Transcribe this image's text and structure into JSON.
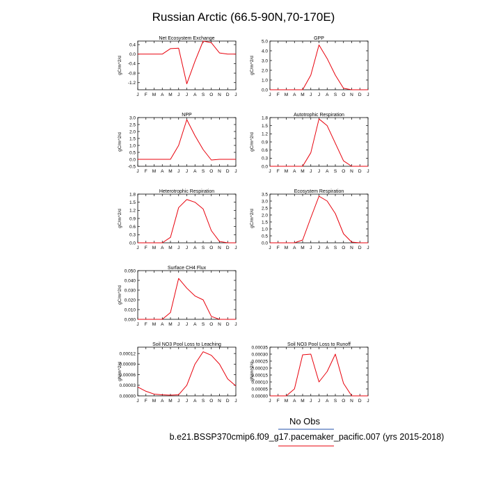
{
  "figure": {
    "title": "Russian Arctic (66.5-90N,70-170E)",
    "legend_text": "No Obs",
    "caption": "b.e21.BSSP370cmip6.f09_g17.pacemaker_pacific.007 (yrs 2015-2018)",
    "line_color": "#e8000b",
    "legend_line_color": "#1f4fa8",
    "caption_line_color": "#e8000b"
  },
  "chart_data": [
    {
      "type": "line",
      "title": "Net Ecosystem Exchange",
      "ylabel": "gC/m^2/d",
      "categories": [
        "J",
        "F",
        "M",
        "A",
        "M",
        "J",
        "J",
        "A",
        "S",
        "O",
        "N",
        "D",
        "J"
      ],
      "values": [
        0.0,
        0.0,
        0.0,
        0.0,
        0.23,
        0.25,
        -1.25,
        -0.3,
        0.55,
        0.48,
        0.05,
        0.0,
        0.0
      ],
      "ylim": [
        -1.5,
        0.55
      ],
      "yticks": [
        "0.4",
        "0.0",
        "-0.4",
        "-0.8",
        "-1.2"
      ]
    },
    {
      "type": "line",
      "title": "GPP",
      "ylabel": "gC/m^2/d",
      "categories": [
        "J",
        "F",
        "M",
        "A",
        "M",
        "J",
        "J",
        "A",
        "S",
        "O",
        "N",
        "D",
        "J"
      ],
      "values": [
        0.0,
        0.0,
        0.0,
        0.0,
        0.0,
        1.5,
        4.6,
        3.2,
        1.5,
        0.15,
        0.0,
        0.0,
        0.0
      ],
      "ylim": [
        0,
        5.0
      ],
      "yticks": [
        "5.0",
        "4.0",
        "3.0",
        "2.0",
        "1.0",
        "0.0"
      ]
    },
    {
      "type": "line",
      "title": "NPP",
      "ylabel": "gC/m^2/d",
      "categories": [
        "J",
        "F",
        "M",
        "A",
        "M",
        "J",
        "J",
        "A",
        "S",
        "O",
        "N",
        "D",
        "J"
      ],
      "values": [
        0.0,
        0.0,
        0.0,
        0.0,
        0.0,
        1.0,
        2.85,
        1.7,
        0.7,
        -0.05,
        0.0,
        0.0,
        0.0
      ],
      "ylim": [
        -0.5,
        3.0
      ],
      "yticks": [
        "3.0",
        "2.5",
        "2.0",
        "1.5",
        "1.0",
        "0.5",
        "0.0",
        "-0.5"
      ]
    },
    {
      "type": "line",
      "title": "Autotrophic Respiration",
      "ylabel": "gC/m^2/d",
      "categories": [
        "J",
        "F",
        "M",
        "A",
        "M",
        "J",
        "J",
        "A",
        "S",
        "O",
        "N",
        "D",
        "J"
      ],
      "values": [
        0.0,
        0.0,
        0.0,
        0.0,
        0.0,
        0.5,
        1.75,
        1.5,
        0.85,
        0.2,
        0.0,
        0.0,
        0.0
      ],
      "ylim": [
        0,
        1.8
      ],
      "yticks": [
        "1.8",
        "1.5",
        "1.2",
        "0.9",
        "0.6",
        "0.3",
        "0.0"
      ]
    },
    {
      "type": "line",
      "title": "Heterotrophic Respiration",
      "ylabel": "gC/m^2/d",
      "categories": [
        "J",
        "F",
        "M",
        "A",
        "M",
        "J",
        "J",
        "A",
        "S",
        "O",
        "N",
        "D",
        "J"
      ],
      "values": [
        0.0,
        0.0,
        0.0,
        0.0,
        0.2,
        1.3,
        1.6,
        1.5,
        1.25,
        0.45,
        0.05,
        0.0,
        0.0
      ],
      "ylim": [
        0,
        1.8
      ],
      "yticks": [
        "1.8",
        "1.5",
        "1.2",
        "0.9",
        "0.6",
        "0.3",
        "0.0"
      ]
    },
    {
      "type": "line",
      "title": "Ecosystem Respiration",
      "ylabel": "gC/m^2/d",
      "categories": [
        "J",
        "F",
        "M",
        "A",
        "M",
        "J",
        "J",
        "A",
        "S",
        "O",
        "N",
        "D",
        "J"
      ],
      "values": [
        0.0,
        0.0,
        0.0,
        0.0,
        0.2,
        1.8,
        3.35,
        3.0,
        2.1,
        0.65,
        0.05,
        0.0,
        0.0
      ],
      "ylim": [
        0,
        3.5
      ],
      "yticks": [
        "3.5",
        "3.0",
        "2.5",
        "2.0",
        "1.5",
        "1.0",
        "0.5",
        "0.0"
      ]
    },
    {
      "type": "line",
      "title": "Surface CH4 Flux",
      "ylabel": "gC/m^2/d",
      "categories": [
        "J",
        "F",
        "M",
        "A",
        "M",
        "J",
        "J",
        "A",
        "S",
        "O",
        "N",
        "D",
        "J"
      ],
      "values": [
        0.0,
        0.0,
        0.0,
        0.0,
        0.007,
        0.042,
        0.032,
        0.024,
        0.02,
        0.003,
        0.0,
        0.0,
        0.0
      ],
      "ylim": [
        0,
        0.05
      ],
      "yticks": [
        "0.050",
        "0.040",
        "0.030",
        "0.020",
        "0.010",
        "0.000"
      ]
    },
    {
      "type": "line",
      "title": "Soil NO3 Pool Loss to Leaching",
      "ylabel": "gN/m^2/d",
      "categories": [
        "J",
        "F",
        "M",
        "A",
        "M",
        "J",
        "J",
        "A",
        "S",
        "O",
        "N",
        "D",
        "J"
      ],
      "values": [
        2.5e-05,
        1.3e-05,
        5e-06,
        3e-06,
        2e-06,
        3e-06,
        3e-05,
        9e-05,
        0.000125,
        0.000115,
        9e-05,
        4.8e-05,
        2.8e-05
      ],
      "ylim": [
        0,
        0.000138
      ],
      "yticks": [
        "0.00012",
        "0.00009",
        "0.00006",
        "0.00003",
        "0.00000"
      ]
    },
    {
      "type": "line",
      "title": "Soil NO3 Pool Loss to Runoff",
      "ylabel": "gN/m^2/d",
      "categories": [
        "J",
        "F",
        "M",
        "A",
        "M",
        "J",
        "J",
        "A",
        "S",
        "O",
        "N",
        "D",
        "J"
      ],
      "values": [
        0.0,
        0.0,
        0.0,
        5e-05,
        0.000295,
        0.0003,
        0.0001,
        0.000175,
        0.0003,
        9e-05,
        0.0,
        0.0,
        0.0
      ],
      "ylim": [
        0,
        0.00035
      ],
      "yticks": [
        "0.00035",
        "0.00030",
        "0.00025",
        "0.00020",
        "0.00015",
        "0.00010",
        "0.00005",
        "0.00000"
      ]
    }
  ]
}
